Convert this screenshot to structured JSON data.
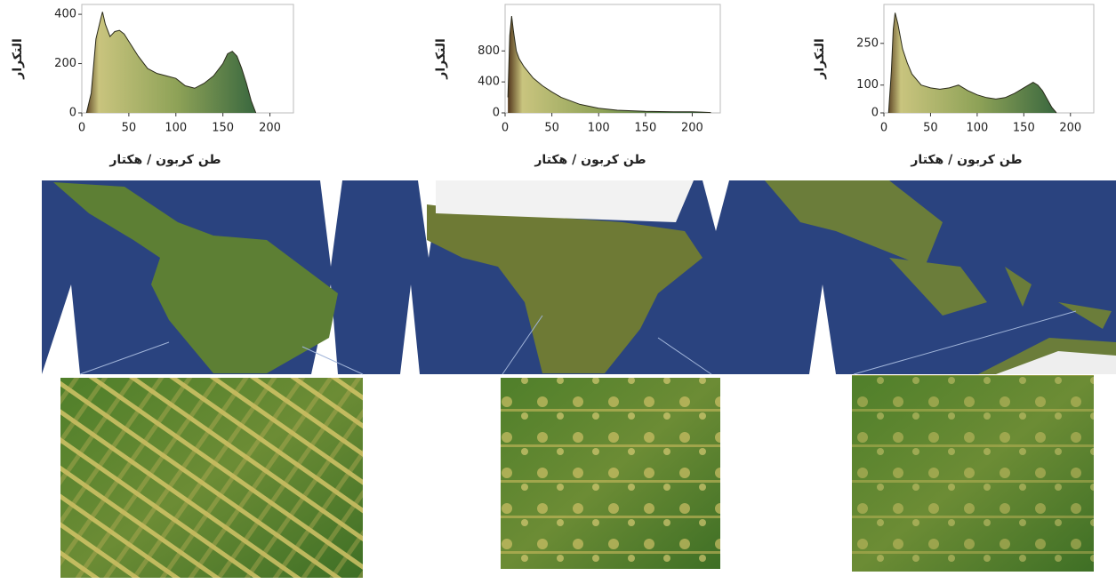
{
  "chart_data": [
    {
      "type": "area",
      "x_label": "طن كربون / هكتار",
      "y_label": "التكرار",
      "x": [
        5,
        10,
        15,
        20,
        22,
        25,
        30,
        35,
        40,
        45,
        50,
        60,
        70,
        80,
        90,
        100,
        110,
        120,
        130,
        140,
        150,
        155,
        160,
        165,
        170,
        175,
        180,
        185
      ],
      "values": [
        0,
        80,
        300,
        380,
        410,
        360,
        310,
        330,
        335,
        320,
        290,
        230,
        180,
        160,
        150,
        140,
        110,
        100,
        120,
        150,
        200,
        240,
        250,
        230,
        180,
        120,
        50,
        0
      ],
      "xlim": [
        0,
        225
      ],
      "xticks": [
        0,
        50,
        100,
        150,
        200
      ],
      "ylim": [
        0,
        440
      ],
      "yticks": [
        0,
        200,
        400
      ]
    },
    {
      "type": "area",
      "x_label": "طن كربون / هكتار",
      "y_label": "التكرار",
      "x": [
        3,
        5,
        7,
        9,
        12,
        15,
        20,
        30,
        40,
        50,
        60,
        80,
        100,
        120,
        150,
        180,
        200,
        210,
        220
      ],
      "values": [
        200,
        1000,
        1250,
        1050,
        800,
        700,
        600,
        450,
        350,
        270,
        200,
        110,
        60,
        35,
        20,
        15,
        15,
        10,
        5
      ],
      "xlim": [
        0,
        230
      ],
      "xticks": [
        0,
        50,
        100,
        150,
        200
      ],
      "ylim": [
        0,
        1400
      ],
      "yticks": [
        0,
        400,
        800
      ]
    },
    {
      "type": "area",
      "x_label": "طن كربون / هكتار",
      "y_label": "التكرار",
      "x": [
        5,
        8,
        10,
        12,
        15,
        20,
        25,
        30,
        40,
        50,
        60,
        70,
        80,
        90,
        100,
        110,
        120,
        130,
        140,
        150,
        160,
        165,
        170,
        175,
        180,
        185
      ],
      "values": [
        0,
        150,
        300,
        360,
        320,
        230,
        180,
        140,
        100,
        90,
        85,
        90,
        100,
        80,
        65,
        55,
        50,
        55,
        70,
        90,
        110,
        100,
        80,
        50,
        20,
        0
      ],
      "xlim": [
        0,
        225
      ],
      "xticks": [
        0,
        50,
        100,
        150,
        200
      ],
      "ylim": [
        0,
        390
      ],
      "yticks": [
        0,
        100,
        250
      ]
    }
  ]
}
